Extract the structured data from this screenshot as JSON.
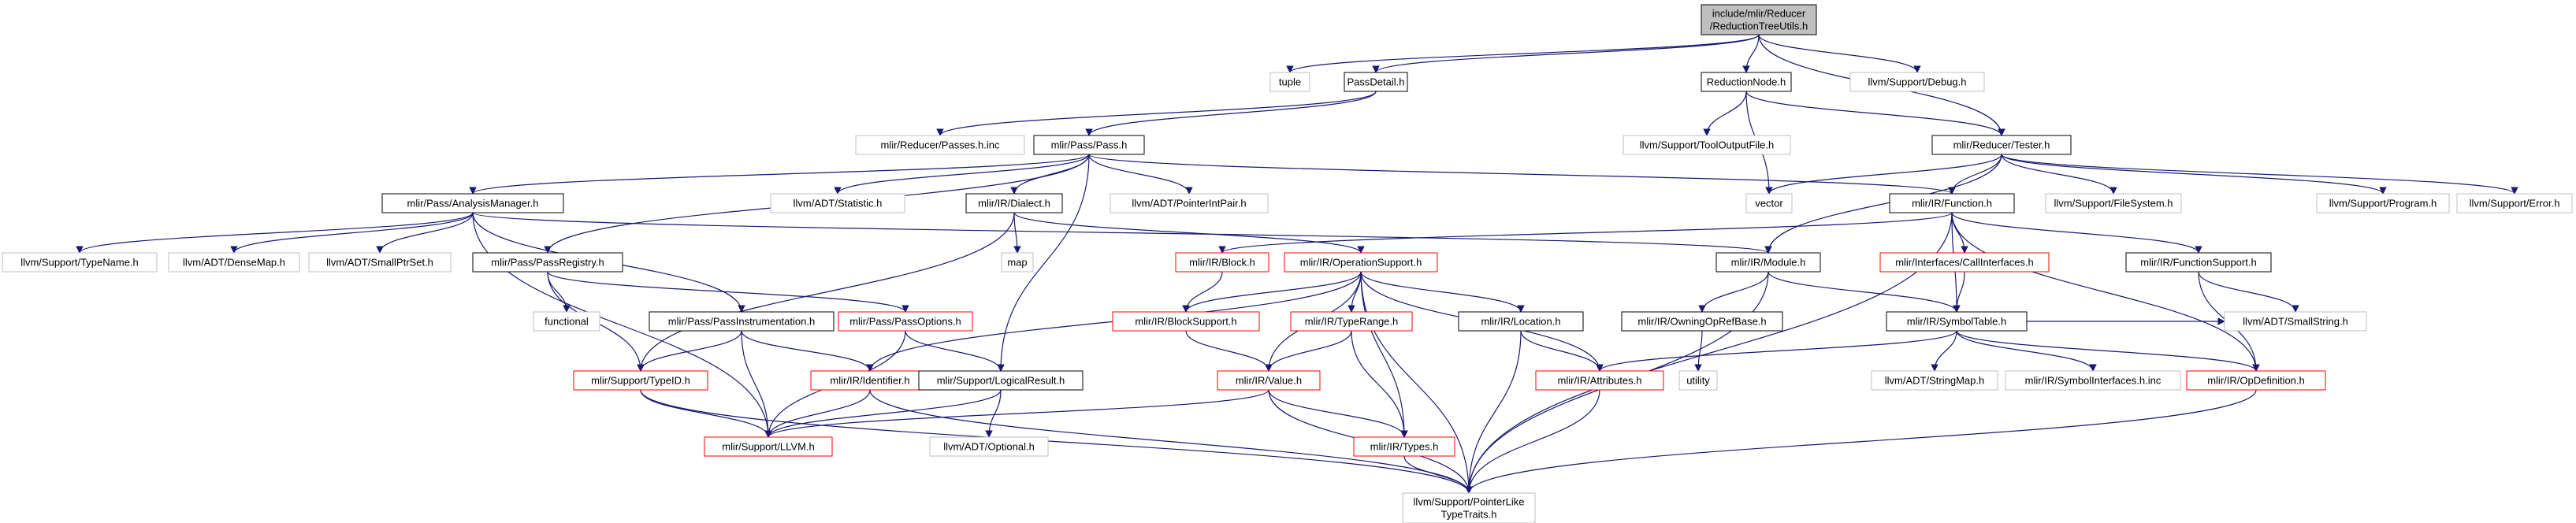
{
  "graph": {
    "colors": {
      "edge": "#191970",
      "edge_light": "#a9a9a9",
      "border_black": "#000000",
      "border_red": "#ff0000",
      "border_gray": "#bfbfbf",
      "root_fill": "#bfbfbf",
      "node_fill": "#ffffff"
    },
    "nodes": [
      {
        "id": "root",
        "lines": [
          "include/mlir/Reducer",
          "/ReductionTreeUtils.h"
        ],
        "style": "root"
      },
      {
        "id": "tuple",
        "lines": [
          "tuple"
        ],
        "style": "gray"
      },
      {
        "id": "passdetail",
        "lines": [
          "PassDetail.h"
        ],
        "style": "black"
      },
      {
        "id": "reductionnode",
        "lines": [
          "ReductionNode.h"
        ],
        "style": "black"
      },
      {
        "id": "debug",
        "lines": [
          "llvm/Support/Debug.h"
        ],
        "style": "gray"
      },
      {
        "id": "passesinc",
        "lines": [
          "mlir/Reducer/Passes.h.inc"
        ],
        "style": "gray"
      },
      {
        "id": "pass",
        "lines": [
          "mlir/Pass/Pass.h"
        ],
        "style": "black"
      },
      {
        "id": "tooloutput",
        "lines": [
          "llvm/Support/ToolOutputFile.h"
        ],
        "style": "gray"
      },
      {
        "id": "tester",
        "lines": [
          "mlir/Reducer/Tester.h"
        ],
        "style": "black"
      },
      {
        "id": "analysismgr",
        "lines": [
          "mlir/Pass/AnalysisManager.h"
        ],
        "style": "black"
      },
      {
        "id": "statistic",
        "lines": [
          "llvm/ADT/Statistic.h"
        ],
        "style": "gray"
      },
      {
        "id": "dialect",
        "lines": [
          "mlir/IR/Dialect.h"
        ],
        "style": "black"
      },
      {
        "id": "pointerintpair",
        "lines": [
          "llvm/ADT/PointerIntPair.h"
        ],
        "style": "gray"
      },
      {
        "id": "vector",
        "lines": [
          "vector"
        ],
        "style": "gray"
      },
      {
        "id": "function",
        "lines": [
          "mlir/IR/Function.h"
        ],
        "style": "black"
      },
      {
        "id": "filesystem",
        "lines": [
          "llvm/Support/FileSystem.h"
        ],
        "style": "gray"
      },
      {
        "id": "program",
        "lines": [
          "llvm/Support/Program.h"
        ],
        "style": "gray"
      },
      {
        "id": "error",
        "lines": [
          "llvm/Support/Error.h"
        ],
        "style": "gray"
      },
      {
        "id": "typename",
        "lines": [
          "llvm/Support/TypeName.h"
        ],
        "style": "gray"
      },
      {
        "id": "densemap",
        "lines": [
          "llvm/ADT/DenseMap.h"
        ],
        "style": "gray"
      },
      {
        "id": "smallptrset",
        "lines": [
          "llvm/ADT/SmallPtrSet.h"
        ],
        "style": "gray"
      },
      {
        "id": "passregistry",
        "lines": [
          "mlir/Pass/PassRegistry.h"
        ],
        "style": "black"
      },
      {
        "id": "map",
        "lines": [
          "map"
        ],
        "style": "gray"
      },
      {
        "id": "block",
        "lines": [
          "mlir/IR/Block.h"
        ],
        "style": "red"
      },
      {
        "id": "opsupport",
        "lines": [
          "mlir/IR/OperationSupport.h"
        ],
        "style": "red"
      },
      {
        "id": "module",
        "lines": [
          "mlir/IR/Module.h"
        ],
        "style": "black"
      },
      {
        "id": "callinterfaces",
        "lines": [
          "mlir/Interfaces/CallInterfaces.h"
        ],
        "style": "red"
      },
      {
        "id": "functionsupport",
        "lines": [
          "mlir/IR/FunctionSupport.h"
        ],
        "style": "black"
      },
      {
        "id": "functional",
        "lines": [
          "functional"
        ],
        "style": "gray"
      },
      {
        "id": "passinstr",
        "lines": [
          "mlir/Pass/PassInstrumentation.h"
        ],
        "style": "black"
      },
      {
        "id": "passoptions",
        "lines": [
          "mlir/Pass/PassOptions.h"
        ],
        "style": "red"
      },
      {
        "id": "blocksupport",
        "lines": [
          "mlir/IR/BlockSupport.h"
        ],
        "style": "red"
      },
      {
        "id": "typerange",
        "lines": [
          "mlir/IR/TypeRange.h"
        ],
        "style": "red"
      },
      {
        "id": "location",
        "lines": [
          "mlir/IR/Location.h"
        ],
        "style": "black"
      },
      {
        "id": "owningop",
        "lines": [
          "mlir/IR/OwningOpRefBase.h"
        ],
        "style": "black"
      },
      {
        "id": "symboltable",
        "lines": [
          "mlir/IR/SymbolTable.h"
        ],
        "style": "black"
      },
      {
        "id": "smallstring",
        "lines": [
          "llvm/ADT/SmallString.h"
        ],
        "style": "gray"
      },
      {
        "id": "utility",
        "lines": [
          "utility"
        ],
        "style": "gray"
      },
      {
        "id": "typeid",
        "lines": [
          "mlir/Support/TypeID.h"
        ],
        "style": "red"
      },
      {
        "id": "identifier",
        "lines": [
          "mlir/IR/Identifier.h"
        ],
        "style": "red"
      },
      {
        "id": "logicalresult",
        "lines": [
          "mlir/Support/LogicalResult.h"
        ],
        "style": "black"
      },
      {
        "id": "value",
        "lines": [
          "mlir/IR/Value.h"
        ],
        "style": "red"
      },
      {
        "id": "attributes",
        "lines": [
          "mlir/IR/Attributes.h"
        ],
        "style": "red"
      },
      {
        "id": "stringmap",
        "lines": [
          "llvm/ADT/StringMap.h"
        ],
        "style": "gray"
      },
      {
        "id": "symbolinterfaces",
        "lines": [
          "mlir/IR/SymbolInterfaces.h.inc"
        ],
        "style": "gray"
      },
      {
        "id": "opdefinition",
        "lines": [
          "mlir/IR/OpDefinition.h"
        ],
        "style": "red"
      },
      {
        "id": "llvm",
        "lines": [
          "mlir/Support/LLVM.h"
        ],
        "style": "red"
      },
      {
        "id": "optional",
        "lines": [
          "llvm/ADT/Optional.h"
        ],
        "style": "gray"
      },
      {
        "id": "types",
        "lines": [
          "mlir/IR/Types.h"
        ],
        "style": "red"
      },
      {
        "id": "pointerlike",
        "lines": [
          "llvm/Support/PointerLike",
          "TypeTraits.h"
        ],
        "style": "gray"
      }
    ],
    "edges": [
      [
        "root",
        "tuple"
      ],
      [
        "root",
        "passdetail"
      ],
      [
        "root",
        "reductionnode"
      ],
      [
        "root",
        "debug"
      ],
      [
        "root",
        "tester"
      ],
      [
        "passdetail",
        "passesinc"
      ],
      [
        "passdetail",
        "pass"
      ],
      [
        "reductionnode",
        "tooloutput"
      ],
      [
        "reductionnode",
        "tester"
      ],
      [
        "reductionnode",
        "vector"
      ],
      [
        "pass",
        "analysismgr"
      ],
      [
        "pass",
        "statistic"
      ],
      [
        "pass",
        "dialect"
      ],
      [
        "pass",
        "pointerintpair"
      ],
      [
        "pass",
        "function"
      ],
      [
        "pass",
        "passregistry"
      ],
      [
        "pass",
        "logicalresult"
      ],
      [
        "tester",
        "vector"
      ],
      [
        "tester",
        "function"
      ],
      [
        "tester",
        "filesystem"
      ],
      [
        "tester",
        "program"
      ],
      [
        "tester",
        "error"
      ],
      [
        "tester",
        "module"
      ],
      [
        "analysismgr",
        "typename"
      ],
      [
        "analysismgr",
        "densemap"
      ],
      [
        "analysismgr",
        "smallptrset"
      ],
      [
        "analysismgr",
        "module"
      ],
      [
        "analysismgr",
        "passinstr"
      ],
      [
        "analysismgr",
        "llvm"
      ],
      [
        "dialect",
        "map"
      ],
      [
        "dialect",
        "opsupport"
      ],
      [
        "dialect",
        "typeid"
      ],
      [
        "function",
        "block"
      ],
      [
        "function",
        "callinterfaces"
      ],
      [
        "function",
        "functionsupport"
      ],
      [
        "function",
        "symboltable"
      ],
      [
        "function",
        "opdefinition"
      ],
      [
        "function",
        "pointerlike"
      ],
      [
        "passregistry",
        "functional"
      ],
      [
        "passregistry",
        "passoptions"
      ],
      [
        "passregistry",
        "typeid"
      ],
      [
        "block",
        "blocksupport"
      ],
      [
        "opsupport",
        "blocksupport"
      ],
      [
        "opsupport",
        "typerange"
      ],
      [
        "opsupport",
        "location"
      ],
      [
        "opsupport",
        "identifier"
      ],
      [
        "opsupport",
        "value"
      ],
      [
        "opsupport",
        "types"
      ],
      [
        "opsupport",
        "attributes"
      ],
      [
        "opsupport",
        "pointerlike"
      ],
      [
        "module",
        "owningop"
      ],
      [
        "module",
        "symboltable"
      ],
      [
        "module",
        "pointerlike"
      ],
      [
        "callinterfaces",
        "symboltable"
      ],
      [
        "functionsupport",
        "opdefinition"
      ],
      [
        "functionsupport",
        "smallstring"
      ],
      [
        "passinstr",
        "typeid"
      ],
      [
        "passinstr",
        "identifier"
      ],
      [
        "passinstr",
        "llvm"
      ],
      [
        "passoptions",
        "logicalresult"
      ],
      [
        "passoptions",
        "llvm"
      ],
      [
        "blocksupport",
        "value"
      ],
      [
        "typerange",
        "value"
      ],
      [
        "typerange",
        "types"
      ],
      [
        "location",
        "attributes"
      ],
      [
        "location",
        "pointerlike"
      ],
      [
        "owningop",
        "utility"
      ],
      [
        "symboltable",
        "stringmap"
      ],
      [
        "symboltable",
        "symbolinterfaces"
      ],
      [
        "symboltable",
        "opdefinition"
      ],
      [
        "symboltable",
        "attributes"
      ],
      [
        "symboltable",
        "smallstring"
      ],
      [
        "typeid",
        "llvm"
      ],
      [
        "typeid",
        "pointerlike"
      ],
      [
        "identifier",
        "llvm"
      ],
      [
        "identifier",
        "pointerlike"
      ],
      [
        "logicalresult",
        "llvm"
      ],
      [
        "logicalresult",
        "optional"
      ],
      [
        "value",
        "types"
      ],
      [
        "value",
        "llvm"
      ],
      [
        "value",
        "pointerlike"
      ],
      [
        "attributes",
        "pointerlike"
      ],
      [
        "opdefinition",
        "pointerlike"
      ],
      [
        "types",
        "pointerlike"
      ]
    ]
  }
}
